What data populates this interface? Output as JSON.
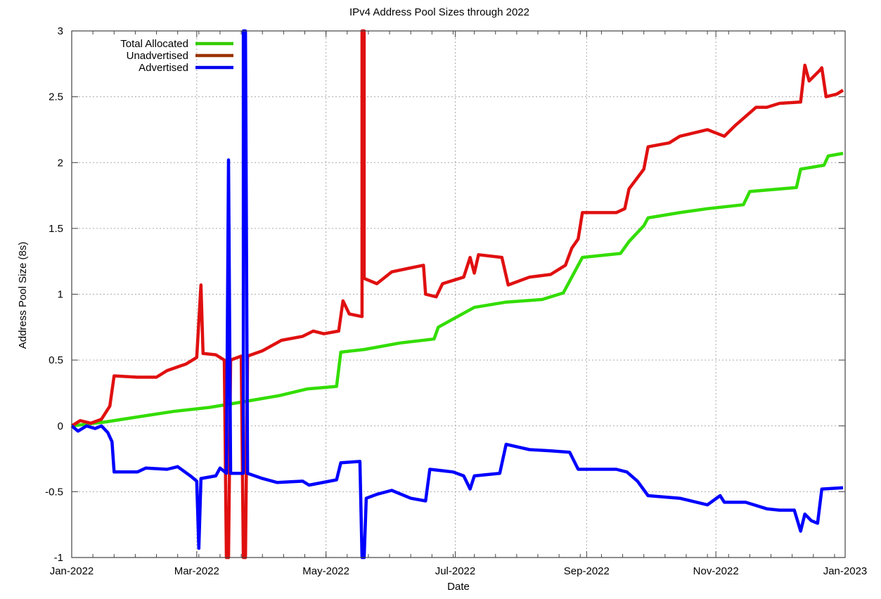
{
  "chart_data": {
    "type": "line",
    "title": "IPv4 Address Pool Sizes through 2022",
    "xlabel": "Date",
    "ylabel": "Address Pool Size (8s)",
    "xlim": [
      "2022-01-01",
      "2023-01-01"
    ],
    "ylim": [
      -1,
      3
    ],
    "grid": true,
    "legend_position": "top-left",
    "x_ticks": [
      {
        "date": "2022-01-01",
        "label": "Jan-2022"
      },
      {
        "date": "2022-03-01",
        "label": "Mar-2022"
      },
      {
        "date": "2022-05-01",
        "label": "May-2022"
      },
      {
        "date": "2022-07-01",
        "label": "Jul-2022"
      },
      {
        "date": "2022-09-01",
        "label": "Sep-2022"
      },
      {
        "date": "2022-11-01",
        "label": "Nov-2022"
      },
      {
        "date": "2023-01-01",
        "label": "Jan-2023"
      }
    ],
    "y_ticks": [
      {
        "value": 3,
        "label": "3"
      },
      {
        "value": 2.5,
        "label": "2.5"
      },
      {
        "value": 2,
        "label": "2"
      },
      {
        "value": 1.5,
        "label": "1.5"
      },
      {
        "value": 1,
        "label": "1"
      },
      {
        "value": 0.5,
        "label": "0.5"
      },
      {
        "value": 0,
        "label": "0"
      },
      {
        "value": -0.5,
        "label": "-0.5"
      },
      {
        "value": -1,
        "label": "-1"
      }
    ],
    "series": [
      {
        "name": "Total Allocated",
        "color": "#33dd00",
        "legend_color": "#33cc00",
        "points": [
          [
            "2022-01-01",
            0
          ],
          [
            "2022-01-17",
            0.03
          ],
          [
            "2022-02-02",
            0.07
          ],
          [
            "2022-02-18",
            0.11
          ],
          [
            "2022-03-07",
            0.14
          ],
          [
            "2022-03-22",
            0.18
          ],
          [
            "2022-04-09",
            0.23
          ],
          [
            "2022-04-22",
            0.28
          ],
          [
            "2022-05-06",
            0.3
          ],
          [
            "2022-05-08",
            0.56
          ],
          [
            "2022-05-19",
            0.58
          ],
          [
            "2022-06-05",
            0.63
          ],
          [
            "2022-06-21",
            0.66
          ],
          [
            "2022-06-23",
            0.75
          ],
          [
            "2022-07-10",
            0.9
          ],
          [
            "2022-07-25",
            0.94
          ],
          [
            "2022-08-11",
            0.96
          ],
          [
            "2022-08-21",
            1.01
          ],
          [
            "2022-08-30",
            1.28
          ],
          [
            "2022-09-17",
            1.31
          ],
          [
            "2022-09-21",
            1.4
          ],
          [
            "2022-09-28",
            1.52
          ],
          [
            "2022-09-30",
            1.58
          ],
          [
            "2022-10-15",
            1.62
          ],
          [
            "2022-10-28",
            1.65
          ],
          [
            "2022-11-14",
            1.68
          ],
          [
            "2022-11-17",
            1.78
          ],
          [
            "2022-12-09",
            1.81
          ],
          [
            "2022-12-11",
            1.95
          ],
          [
            "2022-12-22",
            1.98
          ],
          [
            "2022-12-24",
            2.05
          ],
          [
            "2022-12-31",
            2.07
          ]
        ]
      },
      {
        "name": "Unadvertised",
        "color": "#e01010",
        "legend_color": "#993300",
        "points": [
          [
            "2022-01-01",
            0
          ],
          [
            "2022-01-05",
            0.04
          ],
          [
            "2022-01-10",
            0.02
          ],
          [
            "2022-01-15",
            0.05
          ],
          [
            "2022-01-19",
            0.15
          ],
          [
            "2022-01-21",
            0.38
          ],
          [
            "2022-02-01",
            0.37
          ],
          [
            "2022-02-10",
            0.37
          ],
          [
            "2022-02-15",
            0.42
          ],
          [
            "2022-02-24",
            0.47
          ],
          [
            "2022-03-01",
            0.52
          ],
          [
            "2022-03-03",
            1.07
          ],
          [
            "2022-03-04",
            0.55
          ],
          [
            "2022-03-10",
            0.54
          ],
          [
            "2022-03-14",
            0.5
          ],
          [
            "2022-03-15",
            -1
          ],
          [
            "2022-03-16",
            -1
          ],
          [
            "2022-03-17",
            0.5
          ],
          [
            "2022-03-22",
            0.53
          ],
          [
            "2022-03-23",
            -1
          ],
          [
            "2022-03-24",
            -1
          ],
          [
            "2022-03-25",
            0.53
          ],
          [
            "2022-04-01",
            0.57
          ],
          [
            "2022-04-10",
            0.65
          ],
          [
            "2022-04-20",
            0.68
          ],
          [
            "2022-04-25",
            0.72
          ],
          [
            "2022-04-30",
            0.7
          ],
          [
            "2022-05-07",
            0.72
          ],
          [
            "2022-05-09",
            0.95
          ],
          [
            "2022-05-12",
            0.85
          ],
          [
            "2022-05-18",
            0.83
          ],
          [
            "2022-05-18",
            3
          ],
          [
            "2022-05-19",
            3
          ],
          [
            "2022-05-19",
            1.12
          ],
          [
            "2022-05-25",
            1.08
          ],
          [
            "2022-06-01",
            1.17
          ],
          [
            "2022-06-10",
            1.2
          ],
          [
            "2022-06-16",
            1.22
          ],
          [
            "2022-06-17",
            1.0
          ],
          [
            "2022-06-22",
            0.98
          ],
          [
            "2022-06-25",
            1.08
          ],
          [
            "2022-07-05",
            1.13
          ],
          [
            "2022-07-08",
            1.28
          ],
          [
            "2022-07-10",
            1.16
          ],
          [
            "2022-07-12",
            1.3
          ],
          [
            "2022-07-23",
            1.28
          ],
          [
            "2022-07-26",
            1.07
          ],
          [
            "2022-08-05",
            1.13
          ],
          [
            "2022-08-15",
            1.15
          ],
          [
            "2022-08-22",
            1.22
          ],
          [
            "2022-08-25",
            1.35
          ],
          [
            "2022-08-28",
            1.42
          ],
          [
            "2022-08-30",
            1.62
          ],
          [
            "2022-09-15",
            1.62
          ],
          [
            "2022-09-19",
            1.65
          ],
          [
            "2022-09-21",
            1.8
          ],
          [
            "2022-09-28",
            1.95
          ],
          [
            "2022-09-30",
            2.12
          ],
          [
            "2022-10-10",
            2.15
          ],
          [
            "2022-10-15",
            2.2
          ],
          [
            "2022-10-28",
            2.25
          ],
          [
            "2022-11-05",
            2.2
          ],
          [
            "2022-11-10",
            2.28
          ],
          [
            "2022-11-20",
            2.42
          ],
          [
            "2022-11-25",
            2.42
          ],
          [
            "2022-12-01",
            2.45
          ],
          [
            "2022-12-11",
            2.46
          ],
          [
            "2022-12-13",
            2.74
          ],
          [
            "2022-12-15",
            2.62
          ],
          [
            "2022-12-20",
            2.7
          ],
          [
            "2022-12-21",
            2.72
          ],
          [
            "2022-12-23",
            2.5
          ],
          [
            "2022-12-28",
            2.52
          ],
          [
            "2022-12-31",
            2.55
          ]
        ]
      },
      {
        "name": "Advertised",
        "color": "#0000ff",
        "legend_color": "#0000ee",
        "points": [
          [
            "2022-01-01",
            0
          ],
          [
            "2022-01-04",
            -0.04
          ],
          [
            "2022-01-08",
            0
          ],
          [
            "2022-01-12",
            -0.02
          ],
          [
            "2022-01-15",
            0
          ],
          [
            "2022-01-18",
            -0.05
          ],
          [
            "2022-01-20",
            -0.12
          ],
          [
            "2022-01-21",
            -0.35
          ],
          [
            "2022-02-01",
            -0.35
          ],
          [
            "2022-02-05",
            -0.32
          ],
          [
            "2022-02-15",
            -0.33
          ],
          [
            "2022-02-20",
            -0.31
          ],
          [
            "2022-02-26",
            -0.38
          ],
          [
            "2022-03-01",
            -0.42
          ],
          [
            "2022-03-02",
            -0.93
          ],
          [
            "2022-03-03",
            -0.4
          ],
          [
            "2022-03-10",
            -0.38
          ],
          [
            "2022-03-12",
            -0.32
          ],
          [
            "2022-03-15",
            -0.36
          ],
          [
            "2022-03-16",
            2.02
          ],
          [
            "2022-03-17",
            -0.36
          ],
          [
            "2022-03-23",
            -0.36
          ],
          [
            "2022-03-23",
            3
          ],
          [
            "2022-03-24",
            3
          ],
          [
            "2022-03-25",
            -0.36
          ],
          [
            "2022-04-01",
            -0.4
          ],
          [
            "2022-04-08",
            -0.43
          ],
          [
            "2022-04-20",
            -0.42
          ],
          [
            "2022-04-23",
            -0.45
          ],
          [
            "2022-05-06",
            -0.41
          ],
          [
            "2022-05-08",
            -0.28
          ],
          [
            "2022-05-17",
            -0.27
          ],
          [
            "2022-05-18",
            -1
          ],
          [
            "2022-05-19",
            -1
          ],
          [
            "2022-05-20",
            -0.55
          ],
          [
            "2022-05-25",
            -0.52
          ],
          [
            "2022-06-01",
            -0.49
          ],
          [
            "2022-06-10",
            -0.55
          ],
          [
            "2022-06-17",
            -0.57
          ],
          [
            "2022-06-19",
            -0.33
          ],
          [
            "2022-06-30",
            -0.35
          ],
          [
            "2022-07-05",
            -0.38
          ],
          [
            "2022-07-08",
            -0.48
          ],
          [
            "2022-07-10",
            -0.38
          ],
          [
            "2022-07-22",
            -0.36
          ],
          [
            "2022-07-25",
            -0.14
          ],
          [
            "2022-08-05",
            -0.18
          ],
          [
            "2022-08-15",
            -0.19
          ],
          [
            "2022-08-24",
            -0.2
          ],
          [
            "2022-08-28",
            -0.33
          ],
          [
            "2022-09-15",
            -0.33
          ],
          [
            "2022-09-20",
            -0.35
          ],
          [
            "2022-09-25",
            -0.42
          ],
          [
            "2022-09-30",
            -0.53
          ],
          [
            "2022-10-15",
            -0.55
          ],
          [
            "2022-10-28",
            -0.6
          ],
          [
            "2022-11-03",
            -0.53
          ],
          [
            "2022-11-05",
            -0.58
          ],
          [
            "2022-11-15",
            -0.58
          ],
          [
            "2022-11-25",
            -0.63
          ],
          [
            "2022-12-01",
            -0.64
          ],
          [
            "2022-12-08",
            -0.64
          ],
          [
            "2022-12-11",
            -0.8
          ],
          [
            "2022-12-13",
            -0.67
          ],
          [
            "2022-12-16",
            -0.72
          ],
          [
            "2022-12-19",
            -0.74
          ],
          [
            "2022-12-21",
            -0.48
          ],
          [
            "2022-12-31",
            -0.47
          ]
        ]
      }
    ]
  }
}
